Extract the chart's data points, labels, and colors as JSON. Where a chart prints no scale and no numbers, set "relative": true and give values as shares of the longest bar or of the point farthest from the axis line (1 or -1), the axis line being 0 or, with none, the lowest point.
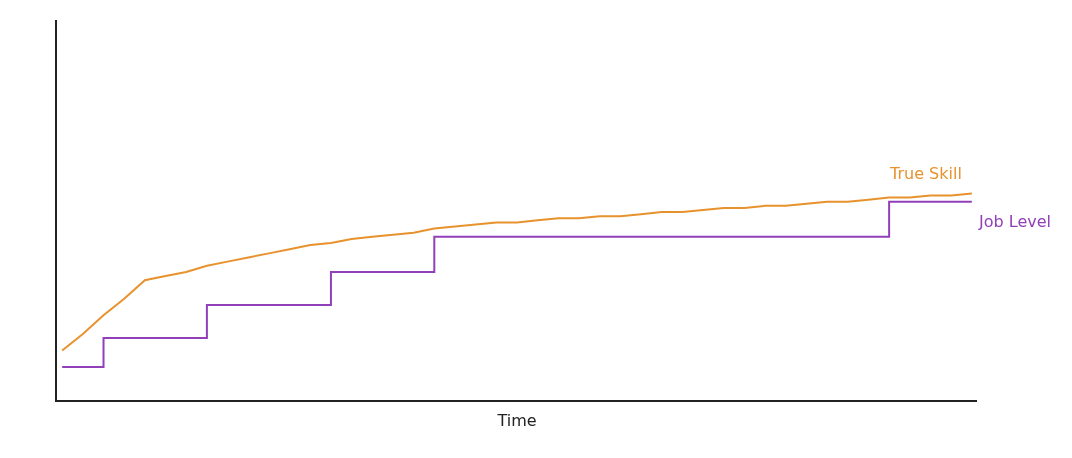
{
  "chart_data": {
    "type": "line",
    "relative": true,
    "xlabel": "Time",
    "legend": false,
    "tick_labels": false,
    "categories": [
      null,
      null,
      null,
      null,
      null,
      null,
      null,
      null,
      null,
      null,
      null,
      null,
      null,
      null,
      null,
      null,
      null,
      null,
      null,
      null,
      null,
      null,
      null,
      null,
      null,
      null,
      null,
      null,
      null,
      null,
      null,
      null,
      null,
      null,
      null,
      null,
      null,
      null,
      null,
      null,
      null,
      null,
      null,
      null,
      null
    ],
    "series": [
      {
        "name": "True Skill",
        "color": "#e8922e",
        "type": "line",
        "values": [
          0.24,
          0.32,
          0.41,
          0.49,
          0.58,
          0.6,
          0.62,
          0.65,
          0.67,
          0.69,
          0.71,
          0.73,
          0.75,
          0.76,
          0.78,
          0.79,
          0.8,
          0.81,
          0.83,
          0.84,
          0.85,
          0.86,
          0.86,
          0.87,
          0.88,
          0.88,
          0.89,
          0.89,
          0.9,
          0.91,
          0.91,
          0.92,
          0.93,
          0.93,
          0.94,
          0.94,
          0.95,
          0.96,
          0.96,
          0.97,
          0.98,
          0.98,
          0.99,
          0.99,
          1.0
        ]
      },
      {
        "name": "Job Level",
        "color": "#9040b8",
        "type": "step",
        "values": [
          0.16,
          0.16,
          0.3,
          0.3,
          0.3,
          0.3,
          0.3,
          0.46,
          0.46,
          0.46,
          0.46,
          0.46,
          0.46,
          0.62,
          0.62,
          0.62,
          0.62,
          0.62,
          0.79,
          0.79,
          0.79,
          0.79,
          0.79,
          0.79,
          0.79,
          0.79,
          0.79,
          0.79,
          0.79,
          0.79,
          0.79,
          0.79,
          0.79,
          0.79,
          0.79,
          0.79,
          0.79,
          0.79,
          0.79,
          0.79,
          0.96,
          0.96,
          0.96,
          0.96,
          0.96
        ]
      }
    ]
  }
}
